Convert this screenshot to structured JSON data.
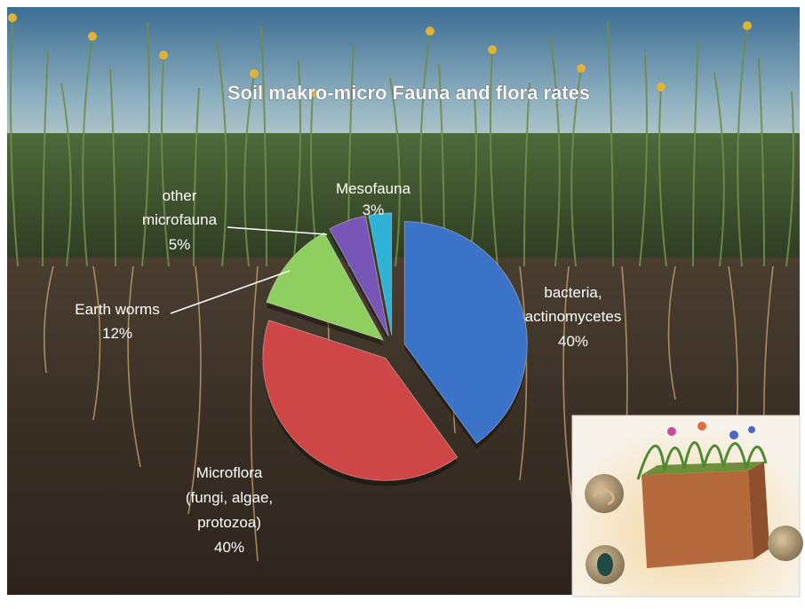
{
  "chart_data": {
    "type": "pie",
    "title": "Soil makro-micro Fauna and flora rates",
    "exploded": true,
    "slices": [
      {
        "key": "bacteria",
        "label_lines": [
          "bacteria,",
          "actinomycetes"
        ],
        "pct_text": "40%",
        "value": 40,
        "color": "#3a73c8"
      },
      {
        "key": "microflora",
        "label_lines": [
          "Microflora",
          "(fungi, algae,",
          "protozoa)"
        ],
        "pct_text": "40%",
        "value": 40,
        "color": "#cf4647"
      },
      {
        "key": "earthworms",
        "label_lines": [
          "Earth worms"
        ],
        "pct_text": "12%",
        "value": 12,
        "color": "#8fcf5f"
      },
      {
        "key": "othermicrofauna",
        "label_lines": [
          "other",
          "microfauna"
        ],
        "pct_text": "5%",
        "value": 5,
        "color": "#7856b8"
      },
      {
        "key": "mesofauna",
        "label_lines": [
          "Mesofauna"
        ],
        "pct_text": "3%",
        "value": 3,
        "color": "#2eb2d6"
      }
    ]
  },
  "colors": {
    "sky_top": "#3f6f95",
    "sky_bottom": "#cfd9d6",
    "soil": "#3e342a",
    "label_text": "#ffffff"
  }
}
